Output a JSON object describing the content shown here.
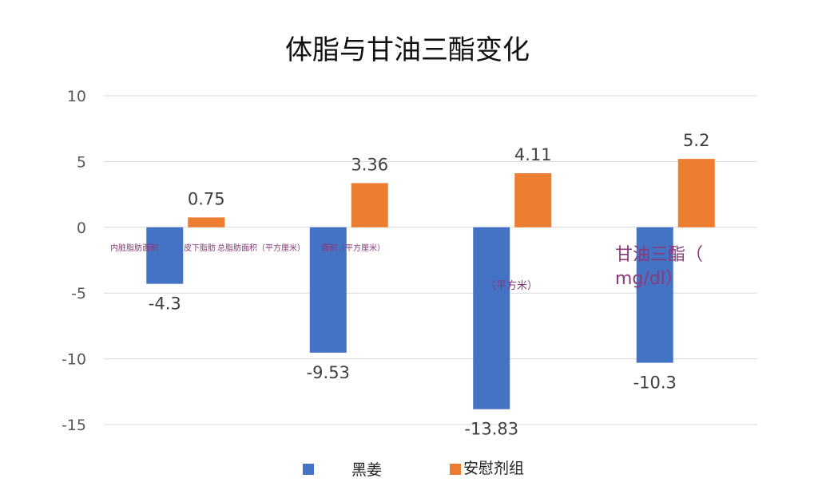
{
  "chart_data": {
    "type": "bar",
    "title": "体脂与甘油三酯变化",
    "categories": [
      "内脏脂肪面积",
      "皮下脂肪",
      "总脂肪面积（平方厘米）",
      "甘油三酯（mg/dl）"
    ],
    "category_labels_visible": [
      "内脏脂肪面积",
      "皮下脂肪",
      "总脂肪面积（平方厘米）",
      "面积（平方厘米）",
      "（平方米）",
      "甘油三酯（",
      "mg/dl）"
    ],
    "series": [
      {
        "name": "黑姜",
        "values": [
          -4.3,
          -9.53,
          -13.83,
          -10.3
        ],
        "color": "#4472C4"
      },
      {
        "name": "安慰剂组",
        "values": [
          0.75,
          3.36,
          4.11,
          5.2
        ],
        "color": "#ED7D31"
      }
    ],
    "data_labels": [
      [
        "-4.3",
        "-9.53",
        "-13.83",
        "-10.3"
      ],
      [
        "0.75",
        "3.36",
        "4.11",
        "5.2"
      ]
    ],
    "yticks": [
      "10",
      "5",
      "0",
      "-5",
      "-10",
      "-15"
    ],
    "ylim": [
      -15,
      10
    ],
    "grid": true,
    "legend_position": "bottom",
    "xlabel": "",
    "ylabel": ""
  }
}
